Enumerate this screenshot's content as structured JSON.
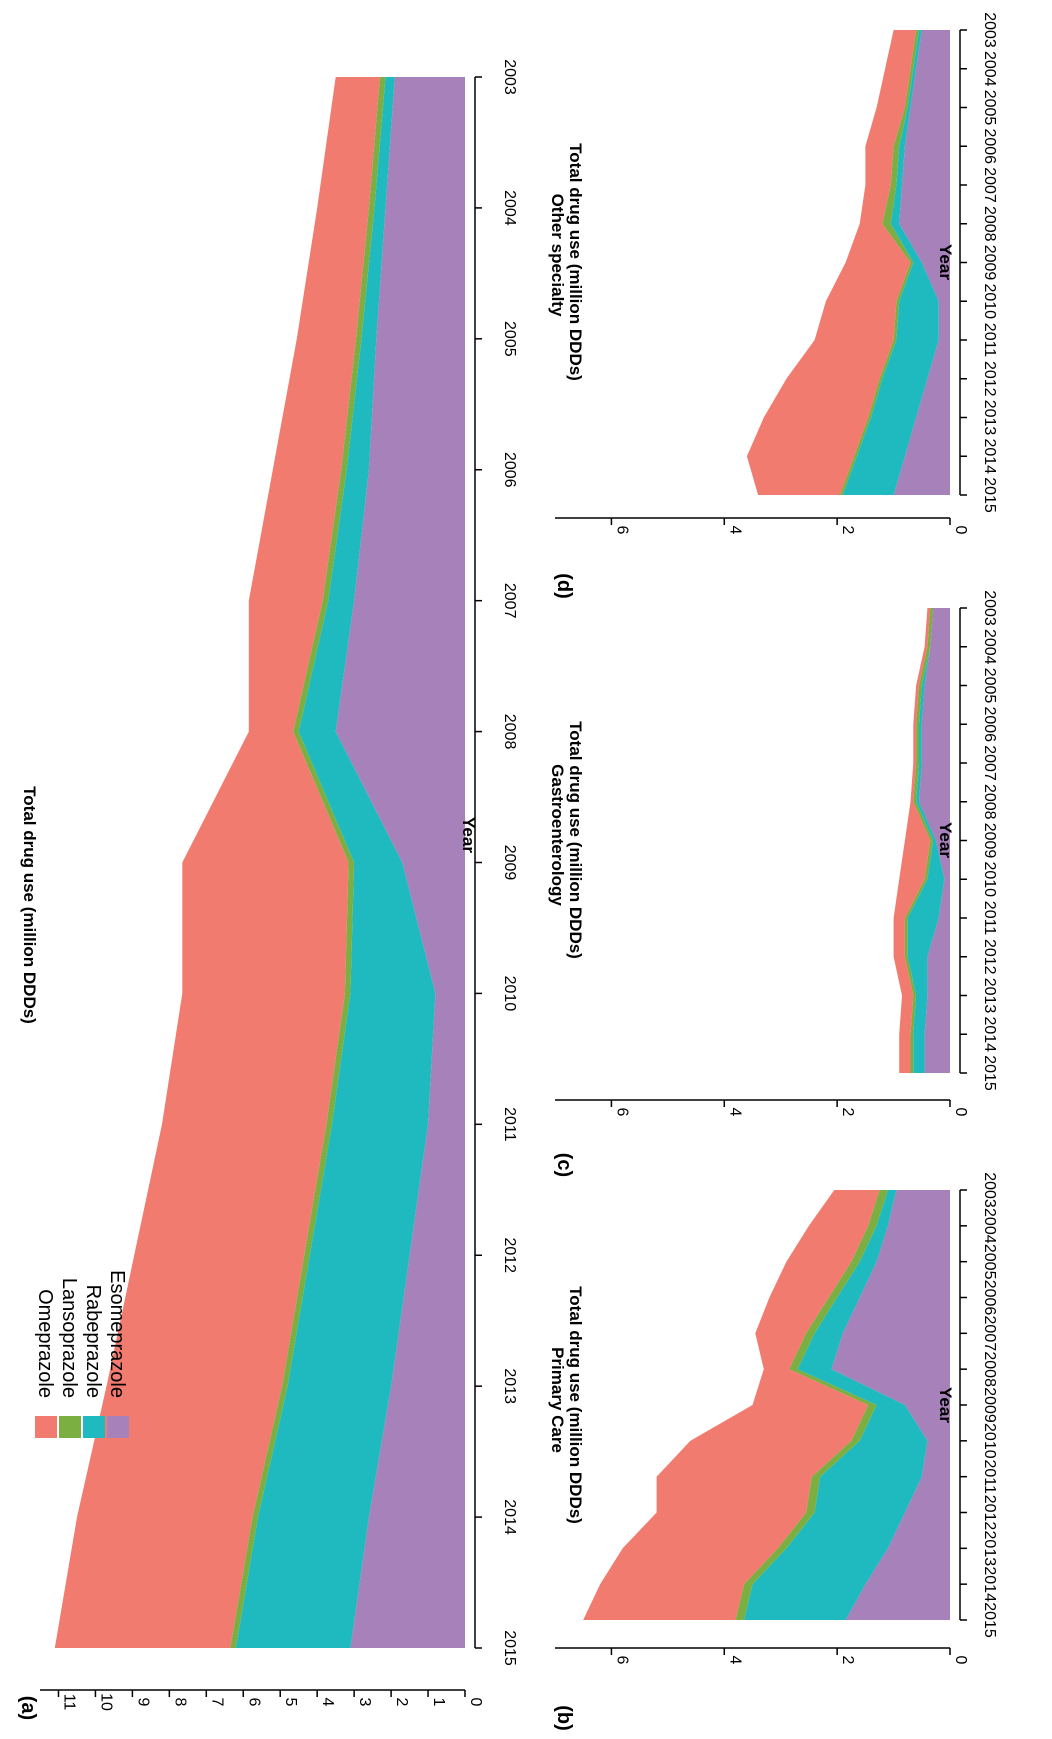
{
  "figure": {
    "orientation": "rotated 90 degrees clockwise",
    "legend": {
      "placement": "top-left of panel (a)",
      "entries": [
        {
          "name": "Omeprazole",
          "color": "#F17B6F"
        },
        {
          "name": "Lansoprazole",
          "color": "#7CAF42"
        },
        {
          "name": "Rabeprazole",
          "color": "#1EBABF"
        },
        {
          "name": "Esomeprazole",
          "color": "#A781BA"
        }
      ]
    }
  },
  "chart_data": [
    {
      "type": "area",
      "stacked": true,
      "panel": "(a)",
      "title": "",
      "xlabel": "Year",
      "ylabel": "Total drug use (million DDDs)",
      "x": [
        2003,
        2004,
        2005,
        2006,
        2007,
        2008,
        2009,
        2010,
        2011,
        2012,
        2013,
        2014,
        2015
      ],
      "xticks": [
        "2003",
        "2004",
        "2005",
        "2006",
        "2007",
        "2008",
        "2009",
        "2010",
        "2011",
        "2012",
        "2013",
        "2014",
        "2015"
      ],
      "ylim": [
        0,
        11.5
      ],
      "yticks": [
        "0",
        "1",
        "2",
        "3",
        "4",
        "5",
        "6",
        "7",
        "8",
        "9",
        "10",
        "11"
      ],
      "grid": false,
      "series": [
        {
          "name": "Esomeprazole",
          "values": [
            1.9,
            2.15,
            2.4,
            2.6,
            3.0,
            3.5,
            1.7,
            0.8,
            1.0,
            1.5,
            2.0,
            2.6,
            3.1
          ]
        },
        {
          "name": "Rabeprazole",
          "values": [
            0.25,
            0.3,
            0.4,
            0.6,
            0.7,
            1.0,
            1.3,
            2.3,
            2.6,
            2.7,
            2.8,
            3.0,
            3.1
          ]
        },
        {
          "name": "Lansoprazole",
          "values": [
            0.15,
            0.15,
            0.15,
            0.15,
            0.15,
            0.15,
            0.15,
            0.15,
            0.15,
            0.15,
            0.15,
            0.15,
            0.15
          ]
        },
        {
          "name": "Omeprazole",
          "values": [
            1.2,
            1.4,
            1.6,
            1.85,
            2.0,
            1.2,
            4.5,
            4.4,
            4.45,
            4.6,
            4.75,
            4.75,
            4.75
          ]
        }
      ]
    },
    {
      "type": "area",
      "stacked": true,
      "panel": "(b)",
      "title": "Primary Care",
      "xlabel": "Year",
      "ylabel": "Total drug use (million DDDs)",
      "x": [
        2003,
        2004,
        2005,
        2006,
        2007,
        2008,
        2009,
        2010,
        2011,
        2012,
        2013,
        2014,
        2015
      ],
      "xticks": [
        "2003",
        "2004",
        "2005",
        "2006",
        "2007",
        "2008",
        "2009",
        "2010",
        "2011",
        "2012",
        "2013",
        "2014",
        "2015"
      ],
      "ylim": [
        0,
        7
      ],
      "yticks": [
        "0",
        "2",
        "4",
        "6"
      ],
      "grid": false,
      "series": [
        {
          "name": "Esomeprazole",
          "values": [
            0.95,
            1.1,
            1.3,
            1.6,
            1.9,
            2.1,
            0.8,
            0.4,
            0.5,
            0.8,
            1.1,
            1.5,
            1.85
          ]
        },
        {
          "name": "Rabeprazole",
          "values": [
            0.15,
            0.2,
            0.3,
            0.4,
            0.5,
            0.6,
            0.5,
            1.2,
            1.8,
            1.6,
            1.8,
            2.0,
            1.8
          ]
        },
        {
          "name": "Lansoprazole",
          "values": [
            0.15,
            0.15,
            0.15,
            0.15,
            0.15,
            0.15,
            0.15,
            0.15,
            0.15,
            0.15,
            0.15,
            0.15,
            0.15
          ]
        },
        {
          "name": "Omeprazole",
          "values": [
            0.8,
            1.05,
            1.15,
            1.05,
            0.9,
            0.45,
            2.05,
            2.85,
            2.75,
            2.65,
            2.75,
            2.55,
            2.7
          ]
        }
      ]
    },
    {
      "type": "area",
      "stacked": true,
      "panel": "(c)",
      "title": "Gastroenterology",
      "xlabel": "Year",
      "ylabel": "Total drug use (million DDDs)",
      "x": [
        2003,
        2004,
        2005,
        2006,
        2007,
        2008,
        2009,
        2010,
        2011,
        2012,
        2013,
        2014,
        2015
      ],
      "xticks": [
        "2003",
        "2004",
        "2005",
        "2006",
        "2007",
        "2008",
        "2009",
        "2010",
        "2011",
        "2012",
        "2013",
        "2014",
        "2015"
      ],
      "ylim": [
        0,
        7
      ],
      "yticks": [
        "0",
        "2",
        "4",
        "6"
      ],
      "grid": false,
      "series": [
        {
          "name": "Esomeprazole",
          "values": [
            0.3,
            0.35,
            0.45,
            0.5,
            0.5,
            0.55,
            0.25,
            0.1,
            0.2,
            0.4,
            0.4,
            0.45,
            0.45
          ]
        },
        {
          "name": "Rabeprazole",
          "values": [
            0.0,
            0.0,
            0.05,
            0.05,
            0.05,
            0.05,
            0.05,
            0.3,
            0.55,
            0.35,
            0.2,
            0.2,
            0.2
          ]
        },
        {
          "name": "Lansoprazole",
          "values": [
            0.05,
            0.05,
            0.05,
            0.05,
            0.05,
            0.05,
            0.05,
            0.05,
            0.05,
            0.05,
            0.05,
            0.05,
            0.05
          ]
        },
        {
          "name": "Omeprazole",
          "values": [
            0.05,
            0.05,
            0.05,
            0.05,
            0.05,
            0.05,
            0.45,
            0.45,
            0.2,
            0.2,
            0.2,
            0.2,
            0.2
          ]
        }
      ]
    },
    {
      "type": "area",
      "stacked": true,
      "panel": "(d)",
      "title": "Other specialty",
      "xlabel": "Year",
      "ylabel": "Total drug use (million DDDs)",
      "x": [
        2003,
        2004,
        2005,
        2006,
        2007,
        2008,
        2009,
        2010,
        2011,
        2012,
        2013,
        2014,
        2015
      ],
      "xticks": [
        "2003",
        "2004",
        "2005",
        "2006",
        "2007",
        "2008",
        "2009",
        "2010",
        "2011",
        "2012",
        "2013",
        "2014",
        "2015"
      ],
      "ylim": [
        0,
        7
      ],
      "yticks": [
        "0",
        "2",
        "4",
        "6"
      ],
      "grid": false,
      "series": [
        {
          "name": "Esomeprazole",
          "values": [
            0.5,
            0.6,
            0.7,
            0.8,
            0.85,
            0.9,
            0.5,
            0.2,
            0.2,
            0.4,
            0.6,
            0.8,
            1.0
          ]
        },
        {
          "name": "Rabeprazole",
          "values": [
            0.05,
            0.05,
            0.05,
            0.1,
            0.1,
            0.15,
            0.15,
            0.7,
            0.75,
            0.8,
            0.8,
            0.85,
            0.9
          ]
        },
        {
          "name": "Lansoprazole",
          "values": [
            0.05,
            0.05,
            0.05,
            0.1,
            0.1,
            0.15,
            0.05,
            0.05,
            0.05,
            0.05,
            0.05,
            0.05,
            0.05
          ]
        },
        {
          "name": "Omeprazole",
          "values": [
            0.4,
            0.45,
            0.5,
            0.5,
            0.45,
            0.4,
            1.15,
            1.25,
            1.4,
            1.65,
            1.85,
            1.9,
            1.45
          ]
        }
      ]
    }
  ]
}
